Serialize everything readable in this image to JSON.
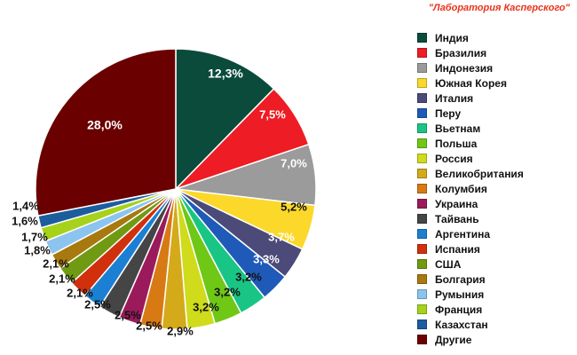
{
  "header": {
    "credit": "\"Лаборатория Касперского\""
  },
  "chart_data": {
    "type": "pie",
    "title": "",
    "unit": "%",
    "slices": [
      {
        "label": "Индия",
        "value": 12.3,
        "display": "12,3%",
        "color": "#0b4b3b"
      },
      {
        "label": "Бразилия",
        "value": 7.5,
        "display": "7,5%",
        "color": "#ee1c24"
      },
      {
        "label": "Индонезия",
        "value": 7.0,
        "display": "7,0%",
        "color": "#9b9b9b"
      },
      {
        "label": "Южная Корея",
        "value": 5.2,
        "display": "5,2%",
        "color": "#fcd82a"
      },
      {
        "label": "Италия",
        "value": 3.7,
        "display": "3,7%",
        "color": "#4b4a78"
      },
      {
        "label": "Перу",
        "value": 3.3,
        "display": "3,3%",
        "color": "#1f5ab8"
      },
      {
        "label": "Вьетнам",
        "value": 3.2,
        "display": "3,2%",
        "color": "#19c585"
      },
      {
        "label": "Польша",
        "value": 3.2,
        "display": "3,2%",
        "color": "#6fc716"
      },
      {
        "label": "Россия",
        "value": 3.2,
        "display": "3,2%",
        "color": "#cfdb1b"
      },
      {
        "label": "Великобритания",
        "value": 2.9,
        "display": "2,9%",
        "color": "#d4aa1a"
      },
      {
        "label": "Колумбия",
        "value": 2.5,
        "display": "2,5%",
        "color": "#d77a14"
      },
      {
        "label": "Украина",
        "value": 2.5,
        "display": "2,5%",
        "color": "#9a1a5b"
      },
      {
        "label": "Тайвань",
        "value": 2.5,
        "display": "2,5%",
        "color": "#454545"
      },
      {
        "label": "Аргентина",
        "value": 2.1,
        "display": "2,1%",
        "color": "#1b7fd4"
      },
      {
        "label": "Испания",
        "value": 2.1,
        "display": "2,1%",
        "color": "#d0300c"
      },
      {
        "label": "США",
        "value": 2.1,
        "display": "2,1%",
        "color": "#6f9a12"
      },
      {
        "label": "Болгария",
        "value": 1.8,
        "display": "1,8%",
        "color": "#a8790f"
      },
      {
        "label": "Румыния",
        "value": 1.7,
        "display": "1,7%",
        "color": "#8cc4f0"
      },
      {
        "label": "Франция",
        "value": 1.6,
        "display": "1,6%",
        "color": "#a6d21c"
      },
      {
        "label": "Казахстан",
        "value": 1.4,
        "display": "1,4%",
        "color": "#1c5d9e"
      },
      {
        "label": "Другие",
        "value": 28.0,
        "display": "28,0%",
        "color": "#6b0000"
      }
    ]
  }
}
